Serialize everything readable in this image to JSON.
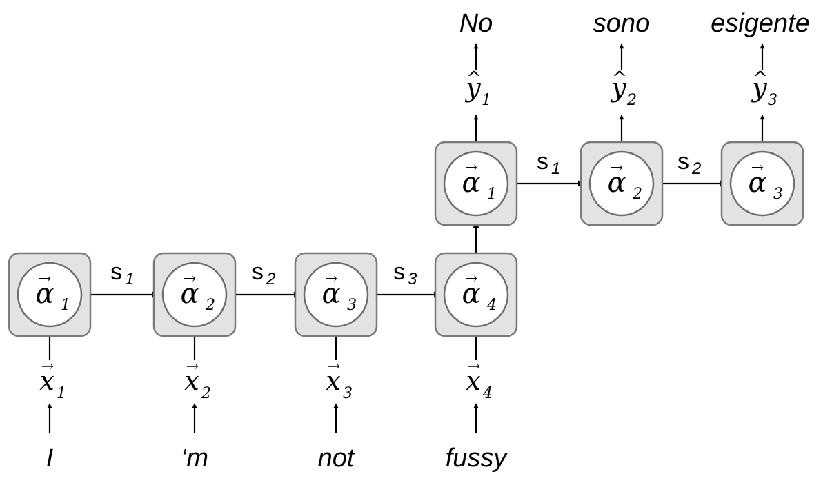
{
  "encoder": {
    "cells": [
      {
        "symbol": "α",
        "sub": "1"
      },
      {
        "symbol": "α",
        "sub": "2"
      },
      {
        "symbol": "α",
        "sub": "3"
      },
      {
        "symbol": "α",
        "sub": "4"
      }
    ],
    "inputs": [
      {
        "symbol": "x",
        "sub": "1"
      },
      {
        "symbol": "x",
        "sub": "2"
      },
      {
        "symbol": "x",
        "sub": "3"
      },
      {
        "symbol": "x",
        "sub": "4"
      }
    ],
    "words": [
      "I",
      "‘m",
      "not",
      "fussy"
    ],
    "states": [
      {
        "symbol": "s",
        "sub": "1"
      },
      {
        "symbol": "s",
        "sub": "2"
      },
      {
        "symbol": "s",
        "sub": "3"
      }
    ]
  },
  "decoder": {
    "cells": [
      {
        "symbol": "α",
        "sub": "1"
      },
      {
        "symbol": "α",
        "sub": "2"
      },
      {
        "symbol": "α",
        "sub": "3"
      }
    ],
    "outputs": [
      {
        "symbol": "y",
        "sub": "1"
      },
      {
        "symbol": "y",
        "sub": "2"
      },
      {
        "symbol": "y",
        "sub": "3"
      }
    ],
    "words": [
      "No",
      "sono",
      "esigente"
    ],
    "states": [
      {
        "symbol": "s",
        "sub": "1"
      },
      {
        "symbol": "s",
        "sub": "2"
      }
    ]
  },
  "vector_mark": "→",
  "hat_mark": "^"
}
